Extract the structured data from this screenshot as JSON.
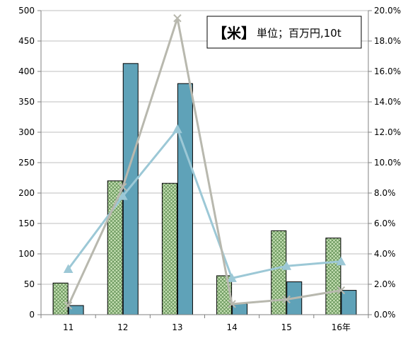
{
  "chart_data": {
    "type": "bar",
    "annotation": {
      "bracket_text": "【米】",
      "unit_text": "単位；百万円,10t"
    },
    "categories": [
      "11",
      "12",
      "13",
      "14",
      "15",
      "16年"
    ],
    "left_axis": {
      "ylim": [
        0,
        500
      ],
      "ticks": [
        "0",
        "50",
        "100",
        "150",
        "200",
        "250",
        "300",
        "350",
        "400",
        "450",
        "500"
      ]
    },
    "right_axis": {
      "ylim": [
        0,
        20
      ],
      "ticks": [
        "0.0%",
        "2.0%",
        "4.0%",
        "6.0%",
        "8.0%",
        "10.0%",
        "12.0%",
        "14.0%",
        "16.0%",
        "18.0%",
        "20.0%"
      ]
    },
    "grid": "horizontal",
    "bar_series": [
      {
        "values": [
          52,
          220,
          216,
          64,
          138,
          126
        ],
        "color": "#c6e0b4",
        "pattern": "crosshatch"
      },
      {
        "values": [
          15,
          413,
          380,
          18,
          54,
          40
        ],
        "color": "#5fa2b8"
      }
    ],
    "line_series": [
      {
        "axis": "right",
        "values": [
          3.0,
          7.8,
          12.2,
          2.4,
          3.2,
          3.5
        ],
        "color": "#9cc8d6",
        "marker": "triangle"
      },
      {
        "axis": "right",
        "values": [
          0.6,
          8.4,
          19.5,
          0.7,
          1.0,
          1.6
        ],
        "color": "#b8b8ae",
        "marker": "x"
      }
    ]
  }
}
